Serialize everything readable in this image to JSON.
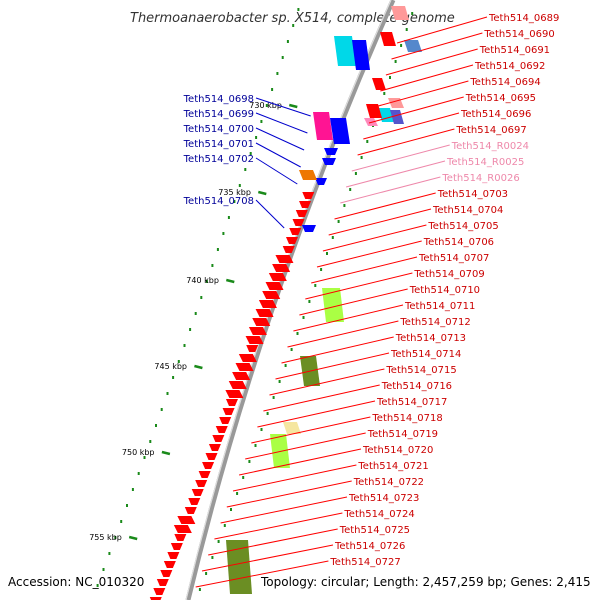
{
  "title": "Thermoanaerobacter sp. X514, complete genome",
  "accession": "Accession: NC_010320",
  "topology": "Topology: circular; Length: 2,457,259 bp; Genes: 2,415",
  "colors": {
    "forward_gene": "#ff0000",
    "reverse_gene": "#0000ff",
    "rna_gene": "#ff88bb",
    "cds_other": "#00d8e8",
    "special_gene": "#ff1493",
    "label_red": "#cc0000",
    "label_blue": "#000099",
    "label_pink": "#ee88aa",
    "backbone": "#999999",
    "tick": "#1a8a1a"
  },
  "kbp_markers": [
    "730 kbp",
    "735 kbp",
    "740 kbp",
    "745 kbp",
    "750 kbp",
    "755 kbp"
  ],
  "left_labels": [
    {
      "text": "Teth514_0698",
      "color": "blue"
    },
    {
      "text": "Teth514_0699",
      "color": "blue"
    },
    {
      "text": "Teth514_0700",
      "color": "blue"
    },
    {
      "text": "Teth514_0701",
      "color": "blue"
    },
    {
      "text": "Teth514_0702",
      "color": "blue"
    },
    {
      "text": "Teth514_0708",
      "color": "blue"
    }
  ],
  "right_labels": [
    {
      "text": "Teth514_0689",
      "color": "red"
    },
    {
      "text": "Teth514_0690",
      "color": "red"
    },
    {
      "text": "Teth514_0691",
      "color": "red"
    },
    {
      "text": "Teth514_0692",
      "color": "red"
    },
    {
      "text": "Teth514_0694",
      "color": "red"
    },
    {
      "text": "Teth514_0695",
      "color": "red"
    },
    {
      "text": "Teth514_0696",
      "color": "red"
    },
    {
      "text": "Teth514_0697",
      "color": "red"
    },
    {
      "text": "Teth514_R0024",
      "color": "pink"
    },
    {
      "text": "Teth514_R0025",
      "color": "pink"
    },
    {
      "text": "Teth514_R0026",
      "color": "pink"
    },
    {
      "text": "Teth514_0703",
      "color": "red"
    },
    {
      "text": "Teth514_0704",
      "color": "red"
    },
    {
      "text": "Teth514_0705",
      "color": "red"
    },
    {
      "text": "Teth514_0706",
      "color": "red"
    },
    {
      "text": "Teth514_0707",
      "color": "red"
    },
    {
      "text": "Teth514_0709",
      "color": "red"
    },
    {
      "text": "Teth514_0710",
      "color": "red"
    },
    {
      "text": "Teth514_0711",
      "color": "red"
    },
    {
      "text": "Teth514_0712",
      "color": "red"
    },
    {
      "text": "Teth514_0713",
      "color": "red"
    },
    {
      "text": "Teth514_0714",
      "color": "red"
    },
    {
      "text": "Teth514_0715",
      "color": "red"
    },
    {
      "text": "Teth514_0716",
      "color": "red"
    },
    {
      "text": "Teth514_0717",
      "color": "red"
    },
    {
      "text": "Teth514_0718",
      "color": "red"
    },
    {
      "text": "Teth514_0719",
      "color": "red"
    },
    {
      "text": "Teth514_0720",
      "color": "red"
    },
    {
      "text": "Teth514_0721",
      "color": "red"
    },
    {
      "text": "Teth514_0722",
      "color": "red"
    },
    {
      "text": "Teth514_0723",
      "color": "red"
    },
    {
      "text": "Teth514_0724",
      "color": "red"
    },
    {
      "text": "Teth514_0725",
      "color": "red"
    },
    {
      "text": "Teth514_0726",
      "color": "red"
    },
    {
      "text": "Teth514_0727",
      "color": "red"
    }
  ]
}
